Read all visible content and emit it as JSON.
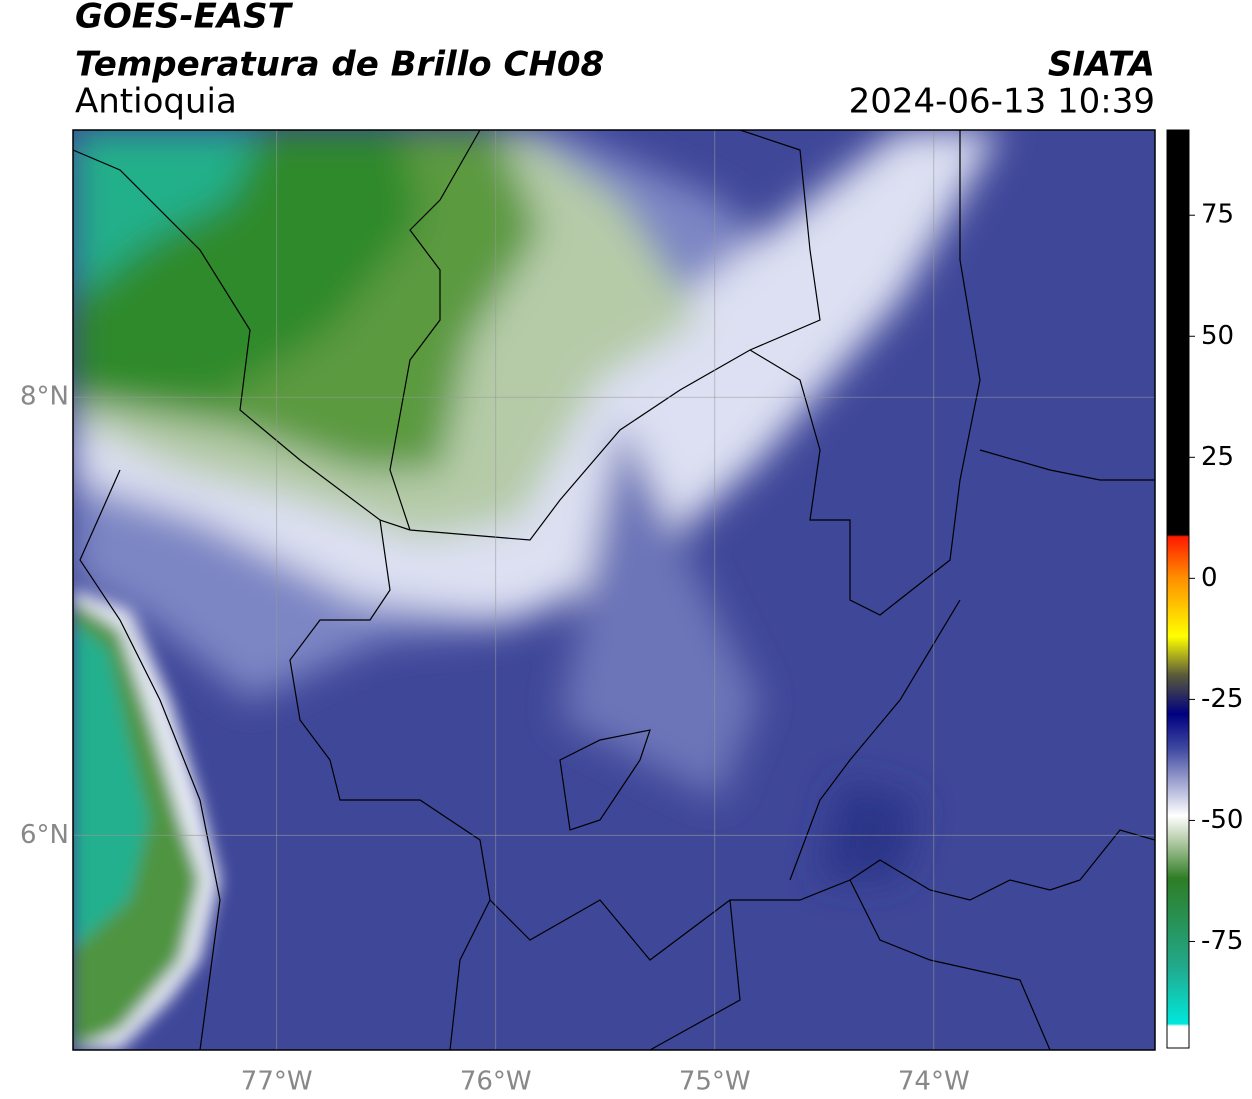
{
  "chart_data": {
    "type": "map",
    "title": "GOES-EAST",
    "subtitle": "Temperatura de Brillo CH08",
    "region": "Antioquia",
    "source": "SIATA",
    "timestamp": "2024-06-13 10:39",
    "xlim": [
      -77.93,
      -72.99
    ],
    "ylim": [
      5.02,
      9.22
    ],
    "xticks": [
      {
        "value": -77,
        "label": "77°W"
      },
      {
        "value": -76,
        "label": "76°W"
      },
      {
        "value": -75,
        "label": "75°W"
      },
      {
        "value": -74,
        "label": "74°W"
      }
    ],
    "yticks": [
      {
        "value": 6,
        "label": "6°N"
      },
      {
        "value": 8,
        "label": "8°N"
      }
    ],
    "grid": true,
    "colorbar": {
      "lim": [
        -97,
        92.6
      ],
      "ticks": [
        75,
        50,
        25,
        0,
        -25,
        -50,
        -75
      ],
      "stops": [
        {
          "value": 92.6,
          "color": "#000000"
        },
        {
          "value": 9,
          "color": "#000000"
        },
        {
          "value": 8.6,
          "color": "#ff1a00"
        },
        {
          "value": 0,
          "color": "#ff9000"
        },
        {
          "value": -12,
          "color": "#ffff00"
        },
        {
          "value": -20,
          "color": "#5a5a3a"
        },
        {
          "value": -28,
          "color": "#000080"
        },
        {
          "value": -35,
          "color": "#3d47a0"
        },
        {
          "value": -49,
          "color": "#ffffff"
        },
        {
          "value": -55,
          "color": "#a8c49a"
        },
        {
          "value": -62,
          "color": "#2e7d25"
        },
        {
          "value": -80,
          "color": "#22a88a"
        },
        {
          "value": -92,
          "color": "#00e8dc"
        },
        {
          "value": -92.5,
          "color": "#ffffff"
        },
        {
          "value": -97,
          "color": "#ffffff"
        }
      ]
    }
  }
}
